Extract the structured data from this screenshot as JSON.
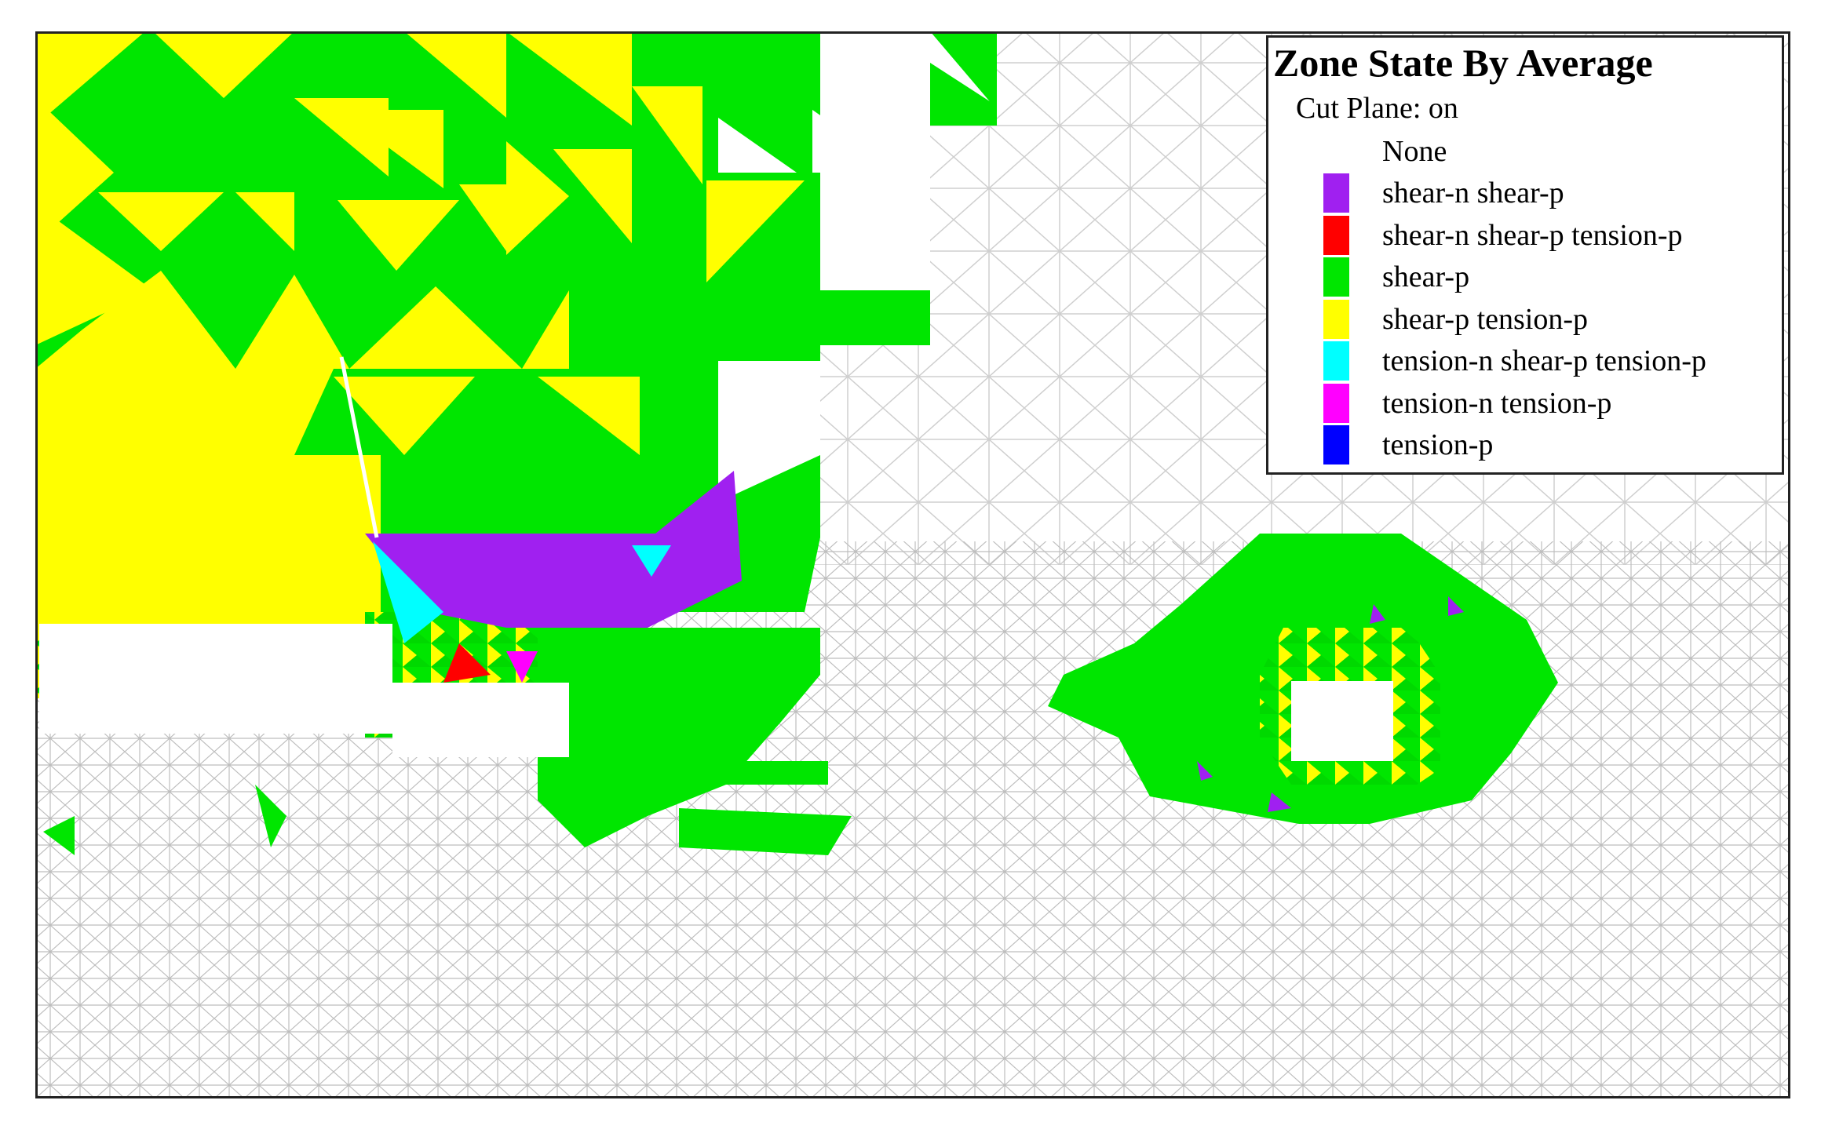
{
  "legend": {
    "title": "Zone State By Average",
    "subtitle": "Cut Plane: on",
    "items": [
      {
        "label": "None",
        "color": "#ffffff"
      },
      {
        "label": "shear-n shear-p",
        "color": "#a020f0"
      },
      {
        "label": "shear-n shear-p tension-p",
        "color": "#ff0000"
      },
      {
        "label": "shear-p",
        "color": "#00e600"
      },
      {
        "label": "shear-p tension-p",
        "color": "#ffff00"
      },
      {
        "label": "tension-n shear-p tension-p",
        "color": "#00ffff"
      },
      {
        "label": "tension-n tension-p",
        "color": "#ff00ff"
      },
      {
        "label": "tension-p",
        "color": "#0000ff"
      }
    ]
  },
  "colors": {
    "mesh_line": "#c8c8c8",
    "frame": "#222222"
  }
}
